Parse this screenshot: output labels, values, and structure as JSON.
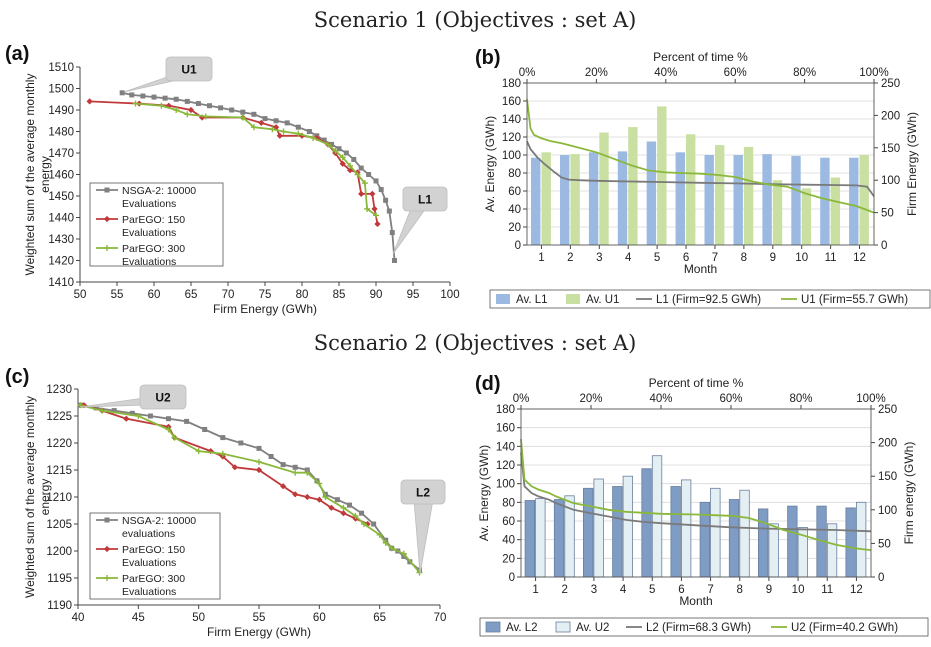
{
  "scenario_titles": [
    "Scenario 1 (Objectives : set A)",
    "Scenario 2 (Objectives : set A)"
  ],
  "colors": {
    "nsga": "#808080",
    "parego150": "#c0393b",
    "parego300": "#8ab83a",
    "barA_light": "#9bb9e1",
    "barB_light": "#c9e0a2",
    "barA_dark": "#7f9cc5",
    "barB_dark": "#e4eff3",
    "curveL": "#7a7a7a",
    "curveU": "#8ab83a"
  },
  "chart_data": [
    {
      "panel": "(a)",
      "type": "line",
      "xlabel": "Firm Energy (GWh)",
      "ylabel": "Weighted sum of the average monthly energy",
      "xlim": [
        50,
        100
      ],
      "ylim": [
        1410,
        1510
      ],
      "xticks": [
        "50",
        "55",
        "60",
        "65",
        "70",
        "75",
        "80",
        "85",
        "90",
        "95",
        "100"
      ],
      "yticks": [
        "1410",
        "1420",
        "1430",
        "1440",
        "1450",
        "1460",
        "1470",
        "1480",
        "1490",
        "1500",
        "1510"
      ],
      "callouts": [
        "U1",
        "L1"
      ],
      "series": [
        {
          "name": "NSGA-2: 10000 Evaluations",
          "legend": [
            "NSGA-2: 10000",
            "Evaluations"
          ],
          "color": "#808080",
          "marker": "square",
          "points": [
            [
              55.7,
              1498
            ],
            [
              57,
              1497
            ],
            [
              58.5,
              1496.5
            ],
            [
              60,
              1496
            ],
            [
              61.5,
              1495.5
            ],
            [
              63,
              1495
            ],
            [
              64.5,
              1494
            ],
            [
              66,
              1493
            ],
            [
              67.5,
              1492
            ],
            [
              69,
              1491
            ],
            [
              70.5,
              1490
            ],
            [
              72,
              1489
            ],
            [
              73.5,
              1488
            ],
            [
              75,
              1486
            ],
            [
              76.5,
              1485
            ],
            [
              78,
              1484
            ],
            [
              79.5,
              1482
            ],
            [
              81,
              1480
            ],
            [
              82,
              1478
            ],
            [
              83,
              1476
            ],
            [
              84,
              1474
            ],
            [
              85,
              1472
            ],
            [
              86,
              1470
            ],
            [
              87,
              1467
            ],
            [
              88,
              1463
            ],
            [
              89,
              1460
            ],
            [
              90,
              1457
            ],
            [
              90.7,
              1453
            ],
            [
              91.3,
              1448
            ],
            [
              91.8,
              1443
            ],
            [
              92.2,
              1433
            ],
            [
              92.5,
              1420
            ]
          ]
        },
        {
          "name": "ParEGO: 150 Evaluations",
          "legend": [
            "ParEGO: 150",
            "Evaluations"
          ],
          "color": "#c0393b",
          "marker": "diamond",
          "points": [
            [
              51.3,
              1494
            ],
            [
              58,
              1493
            ],
            [
              62,
              1492
            ],
            [
              65,
              1490
            ],
            [
              66.5,
              1486.5
            ],
            [
              72,
              1486.5
            ],
            [
              74.5,
              1484
            ],
            [
              76.5,
              1482
            ],
            [
              77,
              1478
            ],
            [
              80,
              1478
            ],
            [
              82,
              1477
            ],
            [
              83.5,
              1474
            ],
            [
              84.5,
              1470
            ],
            [
              85.5,
              1465
            ],
            [
              86.5,
              1462
            ],
            [
              87.5,
              1461
            ],
            [
              88,
              1451
            ],
            [
              89.5,
              1451
            ],
            [
              89.8,
              1444
            ],
            [
              90.2,
              1437
            ]
          ]
        },
        {
          "name": "ParEGO: 300 Evaluations",
          "legend": [
            "ParEGO: 300",
            "Evaluations"
          ],
          "color": "#8ab83a",
          "marker": "cross",
          "points": [
            [
              57.5,
              1493
            ],
            [
              61,
              1492
            ],
            [
              63,
              1490
            ],
            [
              64.5,
              1488
            ],
            [
              67,
              1487
            ],
            [
              72,
              1486.5
            ],
            [
              73.5,
              1482
            ],
            [
              76,
              1481
            ],
            [
              77.5,
              1480
            ],
            [
              79.5,
              1479
            ],
            [
              81.5,
              1477
            ],
            [
              83.5,
              1474
            ],
            [
              84.5,
              1471
            ],
            [
              85.5,
              1468
            ],
            [
              86.5,
              1464
            ],
            [
              87.5,
              1460
            ],
            [
              88.5,
              1456
            ],
            [
              88.8,
              1444
            ],
            [
              90,
              1441
            ]
          ]
        }
      ]
    },
    {
      "panel": "(b)",
      "type": "bar",
      "xlabel": "Month",
      "ylabel": "Av. Energy (GWh)",
      "y2label": "Firm Energy (GWh)",
      "toplabel": "Percent of time %",
      "categories": [
        "1",
        "2",
        "3",
        "4",
        "5",
        "6",
        "7",
        "8",
        "9",
        "10",
        "11",
        "12"
      ],
      "ylim": [
        0,
        180
      ],
      "y2lim": [
        0,
        250
      ],
      "yticks": [
        "0",
        "20",
        "40",
        "60",
        "80",
        "100",
        "120",
        "140",
        "160",
        "180"
      ],
      "y2ticks": [
        "0",
        "50",
        "100",
        "150",
        "200",
        "250"
      ],
      "topticks": [
        "0%",
        "20%",
        "40%",
        "60%",
        "80%",
        "100%"
      ],
      "bars": [
        {
          "name": "Av. L1",
          "color": "#9bb9e1",
          "values": [
            97,
            100,
            103,
            104,
            115,
            103,
            100,
            100,
            101,
            99,
            97,
            97
          ]
        },
        {
          "name": "Av. U1",
          "color": "#c9e0a2",
          "values": [
            103,
            101,
            125,
            131,
            154,
            123,
            111,
            109,
            72,
            63,
            75,
            100
          ]
        }
      ],
      "curves": [
        {
          "name": "L1 (Firm=92.5 GWh)",
          "color": "#7a7a7a",
          "x": [
            0,
            1,
            3,
            5,
            8,
            10,
            12,
            15,
            20,
            30,
            40,
            50,
            60,
            70,
            80,
            90,
            95,
            98,
            100
          ],
          "y": [
            160,
            148,
            135,
            125,
            112,
            104,
            101,
            100,
            99,
            98,
            97,
            96,
            95,
            94,
            93,
            92.5,
            92,
            90,
            75
          ]
        },
        {
          "name": "U1 (Firm=55.7 GWh)",
          "color": "#8ab83a",
          "x": [
            0,
            1,
            2,
            4,
            7,
            10,
            15,
            20,
            25,
            30,
            35,
            40,
            45,
            50,
            55,
            60,
            65,
            70,
            75,
            80,
            85,
            90,
            95,
            100
          ],
          "y": [
            225,
            180,
            170,
            165,
            160,
            157,
            150,
            143,
            133,
            123,
            115,
            112,
            111,
            110,
            108,
            105,
            98,
            93,
            90,
            80,
            72,
            66,
            60,
            50
          ]
        }
      ]
    },
    {
      "panel": "(c)",
      "type": "line",
      "xlabel": "Firm Energy (GWh)",
      "ylabel": "Weighted sum of the average monthly energy",
      "xlim": [
        40,
        70
      ],
      "ylim": [
        1190,
        1230
      ],
      "xticks": [
        "40",
        "45",
        "50",
        "55",
        "60",
        "65",
        "70"
      ],
      "yticks": [
        "1190",
        "1195",
        "1200",
        "1205",
        "1210",
        "1215",
        "1220",
        "1225",
        "1230"
      ],
      "callouts": [
        "U2",
        "L2"
      ],
      "series": [
        {
          "name": "NSGA-2: 10000 evaluations",
          "legend": [
            "NSGA-2: 10000",
            "evaluations"
          ],
          "color": "#808080",
          "marker": "square",
          "points": [
            [
              40.2,
              1227
            ],
            [
              41.5,
              1226.5
            ],
            [
              43,
              1226
            ],
            [
              44.5,
              1225.5
            ],
            [
              46,
              1225
            ],
            [
              47.5,
              1224.5
            ],
            [
              49,
              1224
            ],
            [
              50.5,
              1222.5
            ],
            [
              52,
              1221
            ],
            [
              53.5,
              1220
            ],
            [
              55,
              1219
            ],
            [
              56,
              1217.5
            ],
            [
              57,
              1216
            ],
            [
              58,
              1215.5
            ],
            [
              59,
              1215
            ],
            [
              59.8,
              1213
            ],
            [
              60.5,
              1210.5
            ],
            [
              61.5,
              1209.5
            ],
            [
              62.5,
              1208.5
            ],
            [
              63.5,
              1207
            ],
            [
              64.5,
              1205
            ],
            [
              65.5,
              1202
            ],
            [
              66,
              1200.5
            ],
            [
              66.5,
              1200
            ],
            [
              67,
              1199
            ],
            [
              67.5,
              1198
            ],
            [
              68.3,
              1196.5
            ]
          ]
        },
        {
          "name": "ParEGO: 150 Evaluations",
          "legend": [
            "ParEGO: 150",
            "Evaluations"
          ],
          "color": "#c0393b",
          "marker": "diamond",
          "points": [
            [
              40.5,
              1227
            ],
            [
              42,
              1226
            ],
            [
              44,
              1224.5
            ],
            [
              47.5,
              1223
            ],
            [
              48,
              1221
            ],
            [
              51,
              1218.5
            ],
            [
              52,
              1217.5
            ],
            [
              53,
              1215.5
            ],
            [
              55,
              1215
            ],
            [
              57,
              1212
            ],
            [
              58,
              1210.5
            ],
            [
              59,
              1210
            ],
            [
              60,
              1209.5
            ],
            [
              61,
              1208
            ],
            [
              62,
              1207
            ],
            [
              63,
              1206
            ],
            [
              64,
              1205
            ]
          ]
        },
        {
          "name": "ParEGO: 300 Evaluations",
          "legend": [
            "ParEGO: 300",
            "Evaluations"
          ],
          "color": "#8ab83a",
          "marker": "cross",
          "points": [
            [
              40.2,
              1227
            ],
            [
              42,
              1226
            ],
            [
              45,
              1225
            ],
            [
              47.5,
              1222.5
            ],
            [
              48,
              1221
            ],
            [
              50,
              1218.5
            ],
            [
              52,
              1218
            ],
            [
              55,
              1216.5
            ],
            [
              58,
              1214.5
            ],
            [
              59,
              1214.5
            ],
            [
              60,
              1212.5
            ],
            [
              60.5,
              1210
            ],
            [
              62,
              1208
            ],
            [
              63,
              1206.5
            ],
            [
              63.7,
              1205
            ],
            [
              65,
              1203
            ],
            [
              65.5,
              1201.5
            ],
            [
              66,
              1200.5
            ],
            [
              67,
              1199.5
            ],
            [
              68.3,
              1196
            ]
          ]
        }
      ]
    },
    {
      "panel": "(d)",
      "type": "bar",
      "xlabel": "Month",
      "ylabel": "Av. Energy (GWh)",
      "y2label": "Firm energy (GWh)",
      "toplabel": "Percent of time %",
      "categories": [
        "1",
        "2",
        "3",
        "4",
        "5",
        "6",
        "7",
        "8",
        "9",
        "10",
        "11",
        "12"
      ],
      "ylim": [
        0,
        180
      ],
      "y2lim": [
        0,
        250
      ],
      "yticks": [
        "0",
        "20",
        "40",
        "60",
        "80",
        "100",
        "120",
        "140",
        "160",
        "180"
      ],
      "y2ticks": [
        "0",
        "50",
        "100",
        "150",
        "200",
        "250"
      ],
      "topticks": [
        "0%",
        "20%",
        "40%",
        "60%",
        "80%",
        "100%"
      ],
      "bars": [
        {
          "name": "Av. L2",
          "color": "#7f9cc5",
          "values": [
            82,
            83,
            95,
            97,
            116,
            97,
            80,
            83,
            73,
            76,
            76,
            74
          ]
        },
        {
          "name": "Av. U2",
          "color": "#e4eff3",
          "values": [
            84,
            87,
            105,
            108,
            130,
            104,
            95,
            93,
            57,
            53,
            57,
            80
          ]
        }
      ],
      "curves": [
        {
          "name": "L2 (Firm=68.3 GWh)",
          "color": "#7a7a7a",
          "x": [
            0,
            1,
            3,
            5,
            8,
            10,
            15,
            20,
            25,
            30,
            35,
            40,
            50,
            60,
            70,
            80,
            90,
            100
          ],
          "y": [
            185,
            135,
            125,
            120,
            115,
            110,
            100,
            95,
            90,
            85,
            82,
            80,
            77,
            74,
            72,
            71,
            70,
            68
          ]
        },
        {
          "name": "U2 (Firm=40.2 GWh)",
          "color": "#8ab83a",
          "x": [
            0,
            1,
            3,
            5,
            8,
            10,
            15,
            20,
            25,
            30,
            40,
            50,
            55,
            60,
            65,
            70,
            75,
            80,
            85,
            90,
            95,
            100
          ],
          "y": [
            205,
            145,
            135,
            130,
            125,
            120,
            110,
            105,
            100,
            97,
            94,
            93,
            92,
            91,
            88,
            80,
            70,
            63,
            55,
            48,
            43,
            40
          ]
        }
      ]
    }
  ]
}
